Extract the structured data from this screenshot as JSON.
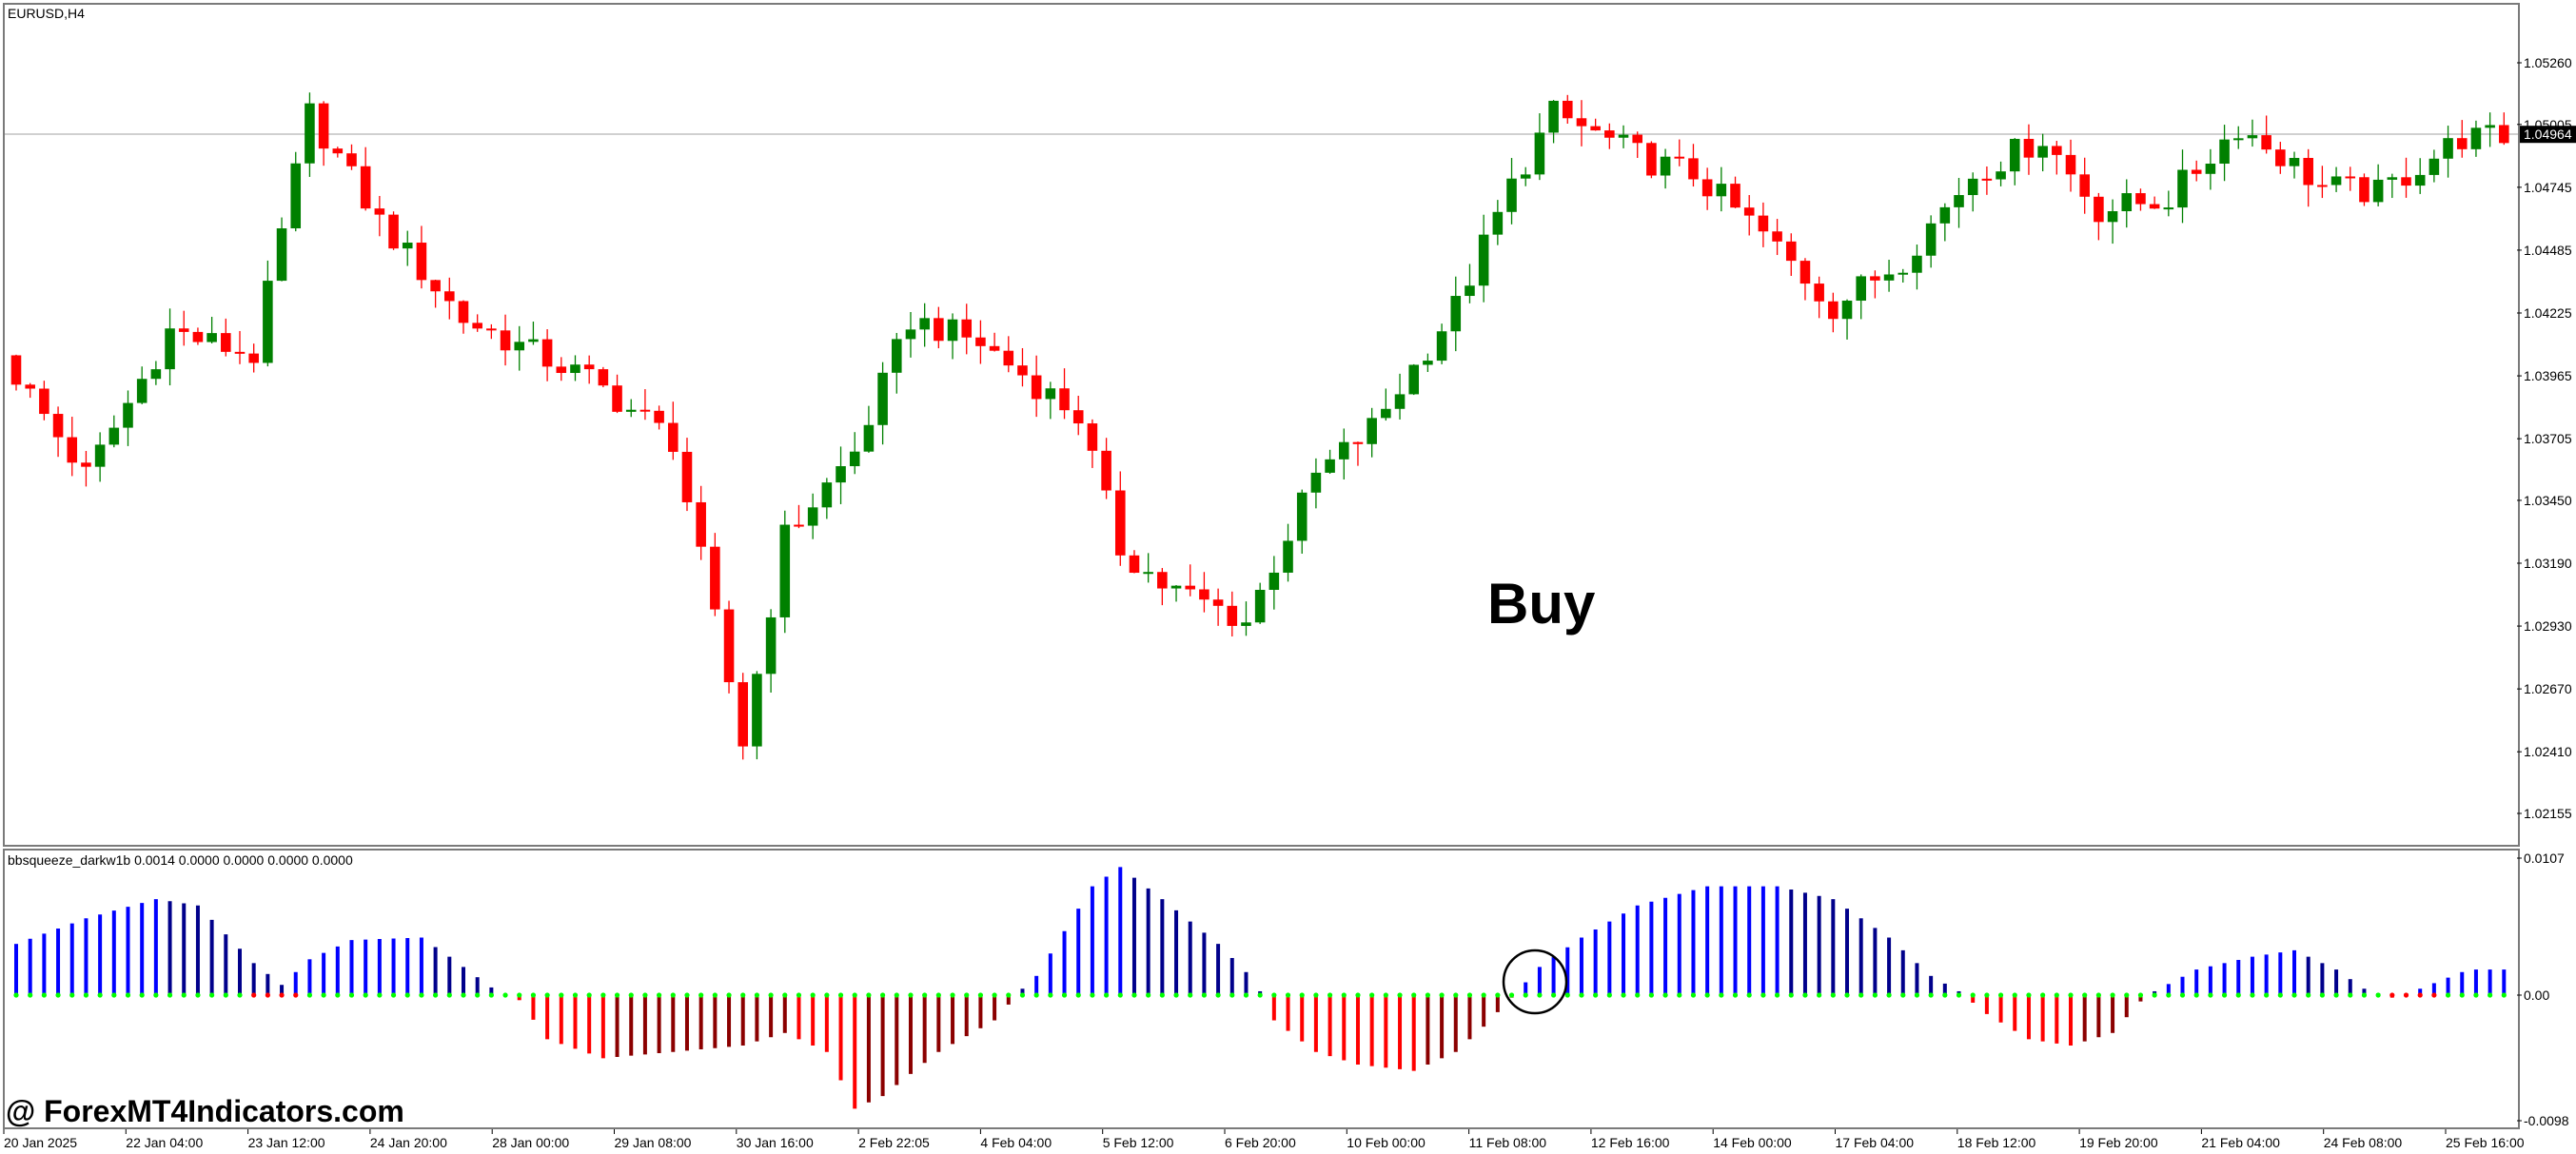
{
  "chart_title": "EURUSD,H4",
  "indicator_label": "bbsqueeze_darkw1b 0.0014 0.0000 0.0000 0.0000 0.0000",
  "annotation": "Buy",
  "watermark": "@ ForexMT4Indicators.com",
  "colors": {
    "bull": "#008000",
    "bear": "#ff0000",
    "hist_blue": "#0000ff",
    "hist_navy": "#00008b",
    "hist_red": "#ff0000",
    "hist_darkred": "#8b0000",
    "dot_green": "#00ff00",
    "dot_red": "#ff0000",
    "current_price_bg": "#000000"
  },
  "chart_data": [
    {
      "type": "candlestick",
      "title": "EURUSD,H4",
      "y_ticks": [
        "1.05260",
        "1.05005",
        "1.04745",
        "1.04485",
        "1.04225",
        "1.03965",
        "1.03705",
        "1.03450",
        "1.03190",
        "1.02930",
        "1.02670",
        "1.02410",
        "1.02155"
      ],
      "ylim": [
        1.0196,
        1.0545
      ],
      "current_price": "1.04964",
      "x_ticks": [
        "20 Jan 2025",
        "22 Jan 04:00",
        "23 Jan 12:00",
        "24 Jan 20:00",
        "28 Jan 00:00",
        "29 Jan 08:00",
        "30 Jan 16:00",
        "2 Feb 22:05",
        "4 Feb 04:00",
        "5 Feb 12:00",
        "6 Feb 20:00",
        "10 Feb 00:00",
        "11 Feb 08:00",
        "12 Feb 16:00",
        "14 Feb 00:00",
        "17 Feb 04:00",
        "18 Feb 12:00",
        "19 Feb 20:00",
        "21 Feb 04:00",
        "24 Feb 08:00",
        "25 Feb 16:00"
      ],
      "candle_anchors": [
        [
          0,
          1.0405
        ],
        [
          6,
          1.0355
        ],
        [
          12,
          1.0415
        ],
        [
          18,
          1.0405
        ],
        [
          22,
          1.0505
        ],
        [
          27,
          1.046
        ],
        [
          33,
          1.042
        ],
        [
          42,
          1.0395
        ],
        [
          48,
          1.037
        ],
        [
          53,
          1.0245
        ],
        [
          56,
          1.033
        ],
        [
          61,
          1.0365
        ],
        [
          65,
          1.042
        ],
        [
          70,
          1.041
        ],
        [
          77,
          1.038
        ],
        [
          80,
          1.0325
        ],
        [
          83,
          1.031
        ],
        [
          89,
          1.0295
        ],
        [
          94,
          1.0355
        ],
        [
          98,
          1.0375
        ],
        [
          104,
          1.0425
        ],
        [
          108,
          1.0475
        ],
        [
          111,
          1.0505
        ],
        [
          118,
          1.0485
        ],
        [
          121,
          1.048
        ],
        [
          126,
          1.0455
        ],
        [
          131,
          1.0425
        ],
        [
          136,
          1.0445
        ],
        [
          141,
          1.048
        ],
        [
          146,
          1.0495
        ],
        [
          150,
          1.0465
        ],
        [
          155,
          1.047
        ],
        [
          160,
          1.05
        ],
        [
          166,
          1.0475
        ],
        [
          170,
          1.0472
        ],
        [
          176,
          1.0495
        ],
        [
          178,
          1.0495
        ]
      ]
    },
    {
      "type": "histogram",
      "title": "bbsqueeze_darkw1b",
      "y_ticks": [
        "0.0107",
        "0.00",
        "-0.0098"
      ],
      "ylim": [
        -0.0098,
        0.0107
      ],
      "amplitude_anchors": [
        [
          0,
          0.004
        ],
        [
          5,
          0.006
        ],
        [
          10,
          0.0075
        ],
        [
          13,
          0.007
        ],
        [
          17,
          0.0025
        ],
        [
          19,
          0.0008
        ],
        [
          21,
          0.0028
        ],
        [
          24,
          0.0043
        ],
        [
          29,
          0.0045
        ],
        [
          31,
          0.003
        ],
        [
          34,
          0.0006
        ],
        [
          36,
          -0.0004
        ],
        [
          38,
          -0.0035
        ],
        [
          42,
          -0.005
        ],
        [
          47,
          -0.0045
        ],
        [
          52,
          -0.004
        ],
        [
          55,
          -0.003
        ],
        [
          58,
          -0.0045
        ],
        [
          60,
          -0.009
        ],
        [
          62,
          -0.008
        ],
        [
          66,
          -0.0045
        ],
        [
          70,
          -0.002
        ],
        [
          72,
          0.0005
        ],
        [
          73,
          0.0015
        ],
        [
          77,
          0.0085
        ],
        [
          79,
          0.01
        ],
        [
          82,
          0.0075
        ],
        [
          86,
          0.004
        ],
        [
          88,
          0.0018
        ],
        [
          89,
          0.0003
        ],
        [
          90,
          -0.002
        ],
        [
          93,
          -0.0045
        ],
        [
          96,
          -0.0055
        ],
        [
          100,
          -0.006
        ],
        [
          103,
          -0.0045
        ],
        [
          105,
          -0.0025
        ],
        [
          107,
          -0.0002
        ],
        [
          108,
          0.001
        ],
        [
          109,
          0.0022
        ],
        [
          112,
          0.0045
        ],
        [
          116,
          0.007
        ],
        [
          121,
          0.0085
        ],
        [
          126,
          0.0085
        ],
        [
          130,
          0.0075
        ],
        [
          134,
          0.0045
        ],
        [
          137,
          0.0015
        ],
        [
          139,
          0.0003
        ],
        [
          141,
          -0.0015
        ],
        [
          144,
          -0.0035
        ],
        [
          147,
          -0.004
        ],
        [
          150,
          -0.003
        ],
        [
          152,
          -0.0005
        ],
        [
          153,
          0.0003
        ],
        [
          156,
          0.002
        ],
        [
          160,
          0.003
        ],
        [
          163,
          0.0035
        ],
        [
          166,
          0.002
        ],
        [
          168,
          0.0005
        ],
        [
          170,
          -0.0002
        ],
        [
          172,
          0.0005
        ],
        [
          175,
          0.0018
        ],
        [
          176,
          0.002
        ]
      ]
    }
  ]
}
